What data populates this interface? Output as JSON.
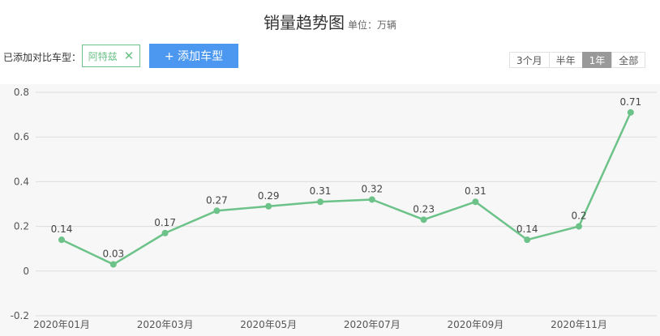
{
  "header": {
    "title": "销量趋势图",
    "unit": "单位：万辆"
  },
  "compare": {
    "label": "已添加对比车型：",
    "chip_label": "阿特兹",
    "add_button_label": "+ 添加车型"
  },
  "range_tabs": [
    {
      "label": "3个月",
      "active": false
    },
    {
      "label": "半年",
      "active": false
    },
    {
      "label": "1年",
      "active": true
    },
    {
      "label": "全部",
      "active": false
    }
  ],
  "colors": {
    "series": "#6cc288",
    "accent": "#4c98f0",
    "active_tab": "#999999",
    "grid": "#dddddd",
    "panel": "#f7f7f7"
  },
  "chart_data": {
    "type": "line",
    "x": [
      "2020年01月",
      "2020年02月",
      "2020年03月",
      "2020年04月",
      "2020年05月",
      "2020年06月",
      "2020年07月",
      "2020年08月",
      "2020年09月",
      "2020年10月",
      "2020年11月",
      "2020年12月"
    ],
    "x_tick_labels": [
      "2020年01月",
      "2020年03月",
      "2020年05月",
      "2020年07月",
      "2020年09月",
      "2020年11月"
    ],
    "series": [
      {
        "values": [
          0.14,
          0.03,
          0.17,
          0.27,
          0.29,
          0.31,
          0.32,
          0.23,
          0.31,
          0.14,
          0.2,
          0.71
        ]
      }
    ],
    "data_labels": [
      "0.14",
      "0.03",
      "0.17",
      "0.27",
      "0.29",
      "0.31",
      "0.32",
      "0.23",
      "0.31",
      "0.14",
      "0.2",
      "0.71"
    ],
    "y_ticks": [
      -0.2,
      0,
      0.2,
      0.4,
      0.6,
      0.8
    ],
    "y_tick_labels": [
      "-0.2",
      "0",
      "0.2",
      "0.4",
      "0.6",
      "0.8"
    ],
    "ylim": [
      -0.2,
      0.8
    ],
    "grid": true
  }
}
